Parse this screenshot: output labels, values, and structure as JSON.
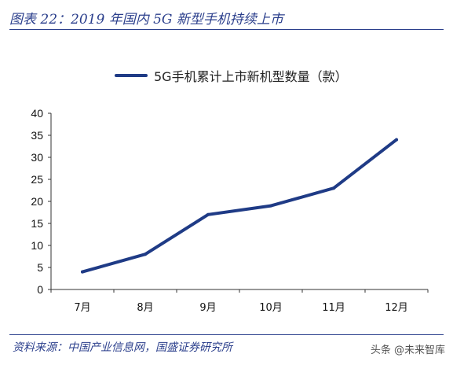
{
  "figure": {
    "title": "图表 22：2019 年国内 5G 新型手机持续上市",
    "source": "资料来源：中国产业信息网，国盛证券研究所",
    "watermark": "头条 @未来智库"
  },
  "colors": {
    "series": "#1f3b86",
    "accent": "#2b3f8c"
  },
  "chart_data": {
    "type": "line",
    "title": "",
    "xlabel": "",
    "ylabel": "",
    "categories": [
      "7月",
      "8月",
      "9月",
      "10月",
      "11月",
      "12月"
    ],
    "series": [
      {
        "name": "5G手机累计上市新机型数量（款）",
        "values": [
          4,
          8,
          17,
          19,
          23,
          34
        ]
      }
    ],
    "ylim": [
      0,
      40
    ],
    "yticks": [
      0,
      5,
      10,
      15,
      20,
      25,
      30,
      35,
      40
    ],
    "grid": false,
    "legend": "top-center"
  }
}
